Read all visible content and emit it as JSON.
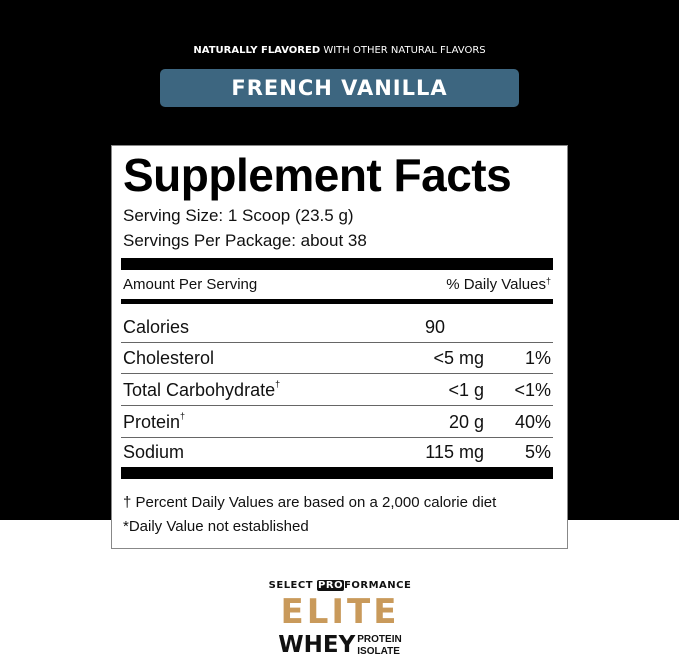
{
  "header": {
    "tagline_bold": "NATURALLY FLAVORED",
    "tagline_rest": " WITH OTHER NATURAL FLAVORS",
    "flavor": "FRENCH VANILLA",
    "flavor_color": "#3d6680"
  },
  "facts": {
    "title": "Supplement Facts",
    "serving_size": "Serving Size: 1 Scoop (23.5 g)",
    "servings_per_package": "Servings Per Package: about 38",
    "amount_header": "Amount Per Serving",
    "dv_header": "% Daily Values",
    "dv_mark": "†",
    "rows": [
      {
        "name": "Calories",
        "mark": "",
        "amount": "90",
        "dv": ""
      },
      {
        "name": "Cholesterol",
        "mark": "",
        "amount": "<5 mg",
        "dv": "1%"
      },
      {
        "name": "Total Carbohydrate",
        "mark": "†",
        "amount": "<1 g",
        "dv": "<1%"
      },
      {
        "name": "Protein",
        "mark": "†",
        "amount": "20 g",
        "dv": "40%"
      },
      {
        "name": "Sodium",
        "mark": "",
        "amount": "115 mg",
        "dv": "5%"
      }
    ],
    "footnote1": "† Percent Daily Values are based on a 2,000 calorie diet",
    "footnote2": "*Daily Value not established"
  },
  "logo": {
    "select": "SELECT ",
    "pro": "PRO",
    "formance": "FORMANCE",
    "elite": "ELITE",
    "whey": "WHEY",
    "protein": "PROTEIN",
    "isolate": "ISOLATE",
    "elite_color": "#c99a5b"
  }
}
